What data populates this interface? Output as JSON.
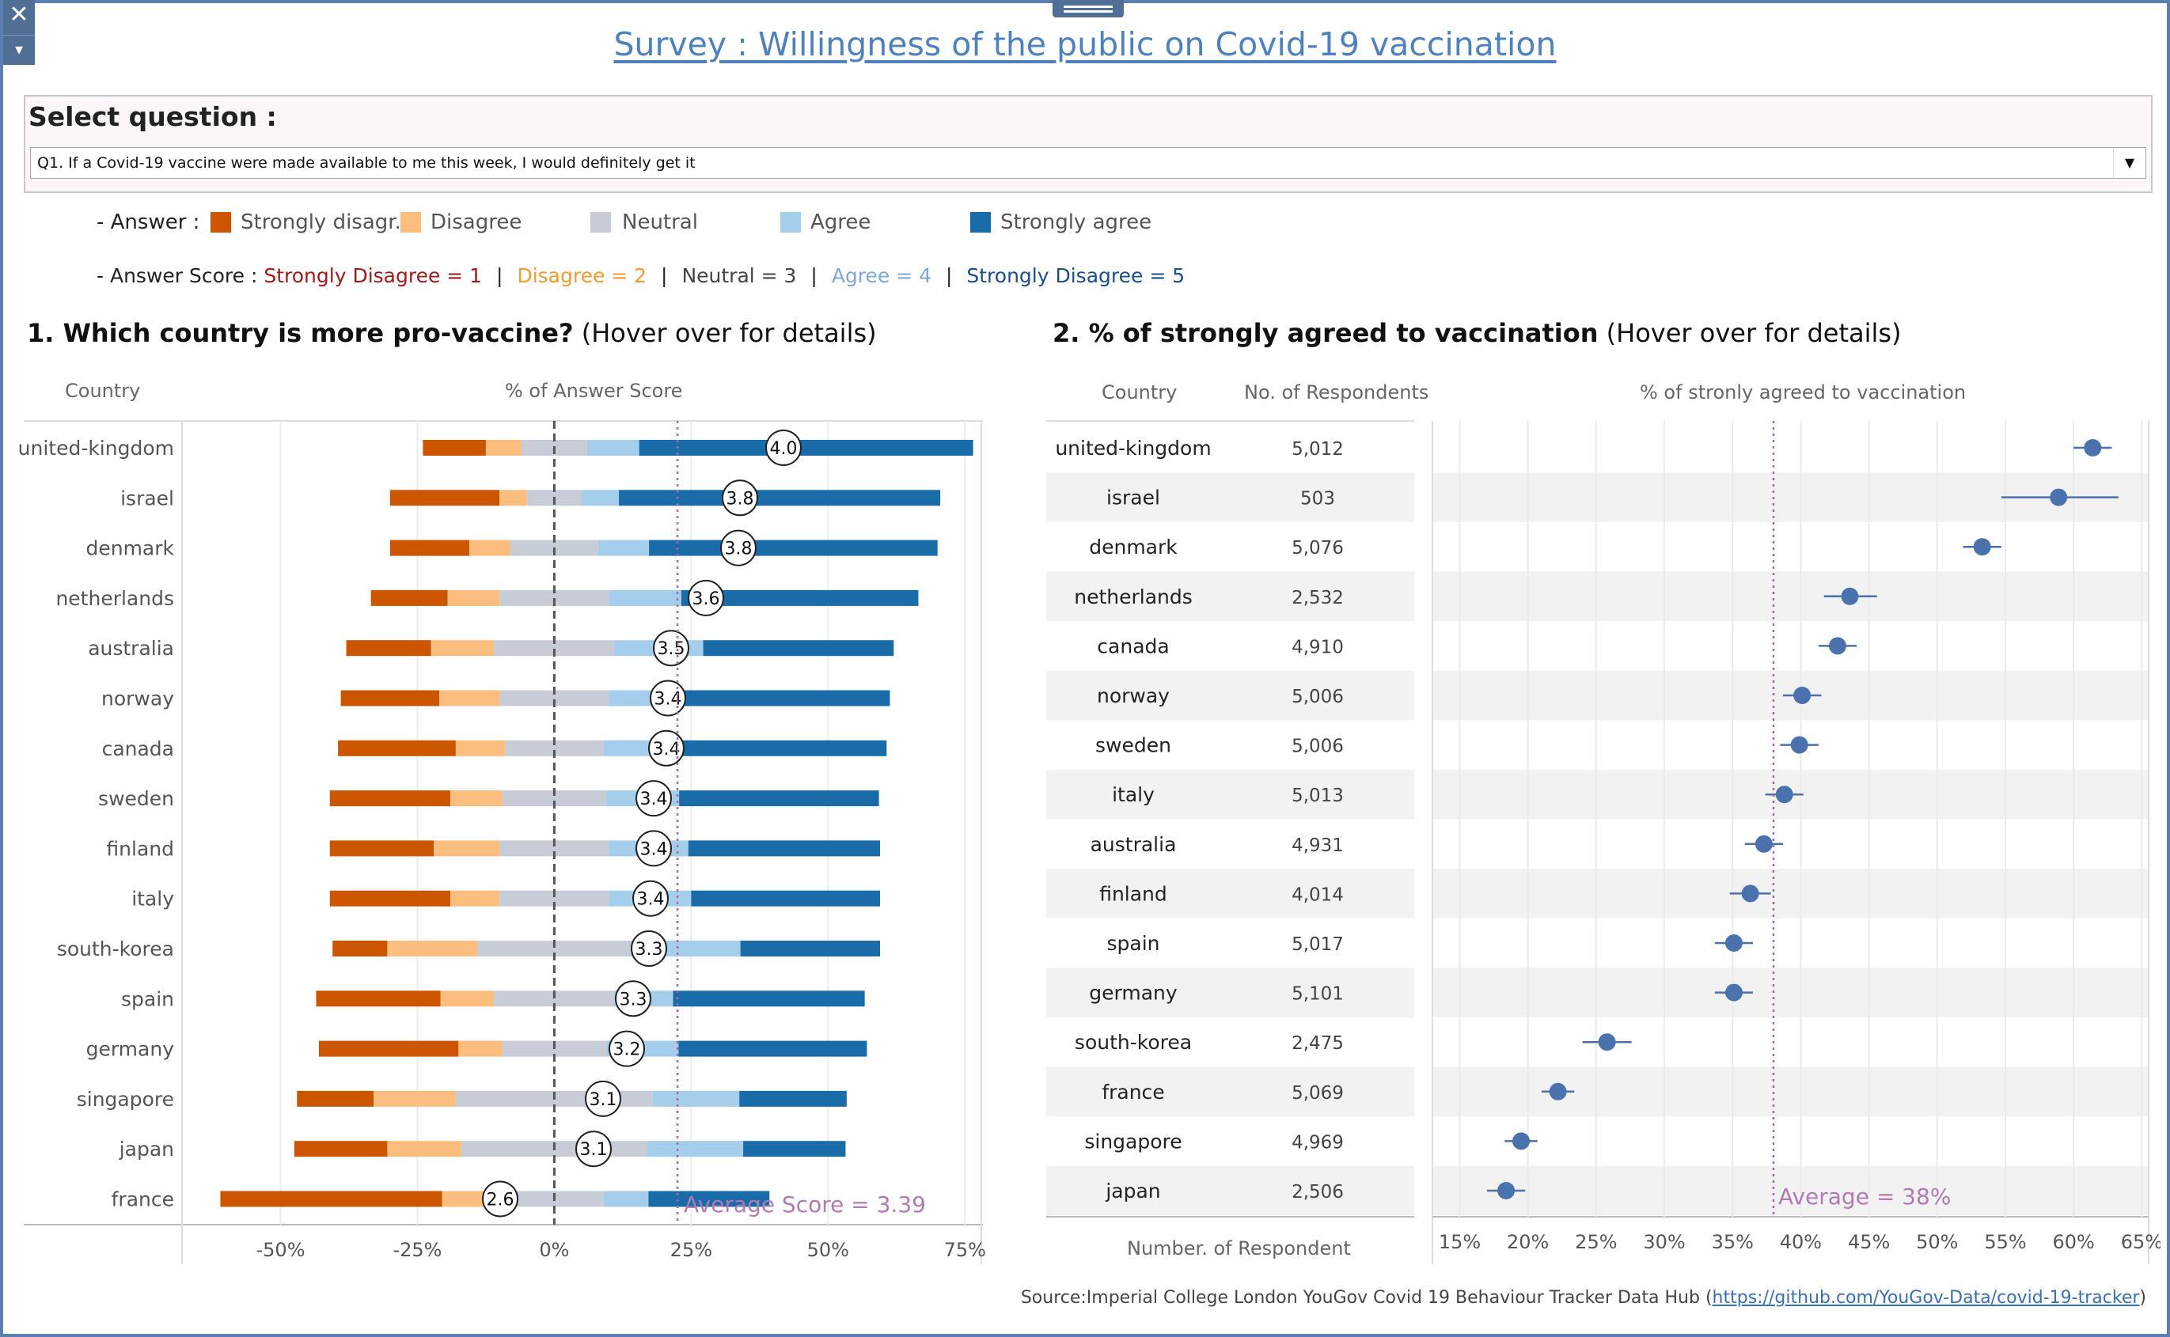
{
  "window": {
    "close_icon": "✕",
    "dropdown_icon": "▾"
  },
  "title": "Survey : Willingness of the public on Covid-19 vaccination",
  "question": {
    "label": "Select question :",
    "selected": "Q1. If a Covid-19 vaccine were made available to me this week, I would definitely get it"
  },
  "legend": {
    "label": "- Answer :",
    "items": [
      {
        "label": "Strongly disagr..",
        "color": "#cc5500"
      },
      {
        "label": "Disagree",
        "color": "#fcbe7e"
      },
      {
        "label": "Neutral",
        "color": "#c7ccd6"
      },
      {
        "label": "Agree",
        "color": "#a5cdec"
      },
      {
        "label": "Strongly agree",
        "color": "#1a6ca8"
      }
    ]
  },
  "score_line": {
    "prefix": "- Answer Score :",
    "items": [
      {
        "text": "Strongly Disagree = 1",
        "color": "#9c1b1b"
      },
      {
        "text": "Disagree = 2",
        "color": "#f29a32"
      },
      {
        "text": "Neutral = 3",
        "color": "#444444"
      },
      {
        "text": "Agree = 4",
        "color": "#7fa9d4"
      },
      {
        "text": "Strongly Disagree = 5",
        "color": "#1a4f8c"
      }
    ],
    "separator": "|"
  },
  "chart1": {
    "heading_bold": "1. Which country is more pro-vaccine?",
    "heading_rest": " (Hover over for details)",
    "col_country": "Country",
    "col_measure": "% of Answer Score"
  },
  "chart2": {
    "heading_bold": "2. % of strongly agreed to vaccination",
    "heading_rest": " (Hover over for details)",
    "col_country": "Country",
    "col_respondents": "No. of Respondents",
    "col_measure": "% of stronly agreed to vaccination",
    "footer_label": "Number. of Respondent"
  },
  "chart_data": [
    {
      "type": "bar",
      "subtype": "diverging-stacked",
      "xlim": [
        -0.68,
        0.78
      ],
      "x_ticks": [
        "-50%",
        "-25%",
        "0%",
        "25%",
        "50%",
        "75%"
      ],
      "x_tick_values": [
        -0.5,
        -0.25,
        0,
        0.25,
        0.5,
        0.75
      ],
      "segments": [
        "Strongly disagree",
        "Disagree",
        "Neutral",
        "Agree",
        "Strongly agree"
      ],
      "average_value": 0.225,
      "average_label": "Average Score = 3.39",
      "rows": [
        {
          "country": "united-kingdom",
          "score": "4.0",
          "values": [
            -0.24,
            -0.125,
            -0.06,
            0.06,
            0.155,
            0.765
          ]
        },
        {
          "country": "israel",
          "score": "3.8",
          "values": [
            -0.3,
            -0.1,
            -0.05,
            0.05,
            0.118,
            0.705
          ]
        },
        {
          "country": "denmark",
          "score": "3.8",
          "values": [
            -0.3,
            -0.155,
            -0.08,
            0.08,
            0.173,
            0.7
          ]
        },
        {
          "country": "netherlands",
          "score": "3.6",
          "values": [
            -0.335,
            -0.195,
            -0.1,
            0.1,
            0.232,
            0.665
          ]
        },
        {
          "country": "australia",
          "score": "3.5",
          "values": [
            -0.38,
            -0.225,
            -0.11,
            0.11,
            0.272,
            0.62
          ]
        },
        {
          "country": "norway",
          "score": "3.4",
          "values": [
            -0.39,
            -0.21,
            -0.1,
            0.1,
            0.23,
            0.613
          ]
        },
        {
          "country": "canada",
          "score": "3.4",
          "values": [
            -0.395,
            -0.18,
            -0.09,
            0.09,
            0.186,
            0.607
          ]
        },
        {
          "country": "sweden",
          "score": "3.4",
          "values": [
            -0.41,
            -0.19,
            -0.095,
            0.095,
            0.228,
            0.593
          ]
        },
        {
          "country": "finland",
          "score": "3.4",
          "values": [
            -0.41,
            -0.22,
            -0.1,
            0.1,
            0.245,
            0.595
          ]
        },
        {
          "country": "italy",
          "score": "3.4",
          "values": [
            -0.41,
            -0.19,
            -0.1,
            0.1,
            0.25,
            0.595
          ]
        },
        {
          "country": "south-korea",
          "score": "3.3",
          "values": [
            -0.405,
            -0.305,
            -0.14,
            0.14,
            0.34,
            0.595
          ]
        },
        {
          "country": "spain",
          "score": "3.3",
          "values": [
            -0.435,
            -0.208,
            -0.11,
            0.11,
            0.217,
            0.567
          ]
        },
        {
          "country": "germany",
          "score": "3.2",
          "values": [
            -0.43,
            -0.175,
            -0.095,
            0.095,
            0.227,
            0.571
          ]
        },
        {
          "country": "singapore",
          "score": "3.1",
          "values": [
            -0.47,
            -0.33,
            -0.18,
            0.18,
            0.338,
            0.534
          ]
        },
        {
          "country": "japan",
          "score": "3.1",
          "values": [
            -0.475,
            -0.305,
            -0.17,
            0.17,
            0.345,
            0.532
          ]
        },
        {
          "country": "france",
          "score": "2.6",
          "values": [
            -0.61,
            -0.205,
            -0.1,
            0.09,
            0.172,
            0.393
          ]
        }
      ]
    },
    {
      "type": "scatter",
      "subtype": "dot-with-error-bars",
      "xlim": [
        0.13,
        0.655
      ],
      "x_ticks": [
        "15%",
        "20%",
        "25%",
        "30%",
        "35%",
        "40%",
        "45%",
        "50%",
        "55%",
        "60%",
        "65%"
      ],
      "x_tick_values": [
        0.15,
        0.2,
        0.25,
        0.3,
        0.35,
        0.4,
        0.45,
        0.5,
        0.55,
        0.6,
        0.65
      ],
      "average_value": 0.38,
      "average_label": "Average = 38%",
      "rows": [
        {
          "country": "united-kingdom",
          "respondents": "5,012",
          "value": 0.614,
          "ci": [
            0.6,
            0.628
          ]
        },
        {
          "country": "israel",
          "respondents": "503",
          "value": 0.589,
          "ci": [
            0.547,
            0.633
          ]
        },
        {
          "country": "denmark",
          "respondents": "5,076",
          "value": 0.533,
          "ci": [
            0.519,
            0.547
          ]
        },
        {
          "country": "netherlands",
          "respondents": "2,532",
          "value": 0.436,
          "ci": [
            0.417,
            0.456
          ]
        },
        {
          "country": "canada",
          "respondents": "4,910",
          "value": 0.427,
          "ci": [
            0.413,
            0.441
          ]
        },
        {
          "country": "norway",
          "respondents": "5,006",
          "value": 0.401,
          "ci": [
            0.387,
            0.415
          ]
        },
        {
          "country": "sweden",
          "respondents": "5,006",
          "value": 0.399,
          "ci": [
            0.385,
            0.413
          ]
        },
        {
          "country": "italy",
          "respondents": "5,013",
          "value": 0.388,
          "ci": [
            0.374,
            0.402
          ]
        },
        {
          "country": "australia",
          "respondents": "4,931",
          "value": 0.373,
          "ci": [
            0.359,
            0.387
          ]
        },
        {
          "country": "finland",
          "respondents": "4,014",
          "value": 0.363,
          "ci": [
            0.348,
            0.378
          ]
        },
        {
          "country": "spain",
          "respondents": "5,017",
          "value": 0.351,
          "ci": [
            0.337,
            0.365
          ]
        },
        {
          "country": "germany",
          "respondents": "5,101",
          "value": 0.351,
          "ci": [
            0.337,
            0.365
          ]
        },
        {
          "country": "south-korea",
          "respondents": "2,475",
          "value": 0.258,
          "ci": [
            0.24,
            0.276
          ]
        },
        {
          "country": "france",
          "respondents": "5,069",
          "value": 0.222,
          "ci": [
            0.21,
            0.234
          ]
        },
        {
          "country": "singapore",
          "respondents": "4,969",
          "value": 0.195,
          "ci": [
            0.183,
            0.207
          ]
        },
        {
          "country": "japan",
          "respondents": "2,506",
          "value": 0.184,
          "ci": [
            0.17,
            0.198
          ]
        }
      ]
    }
  ],
  "source": {
    "prefix": "Source:Imperial College London YouGov Covid 19 Behaviour Tracker Data Hub (",
    "link": "https://github.com/YouGov-Data/covid-19-tracker",
    "suffix": ")"
  }
}
